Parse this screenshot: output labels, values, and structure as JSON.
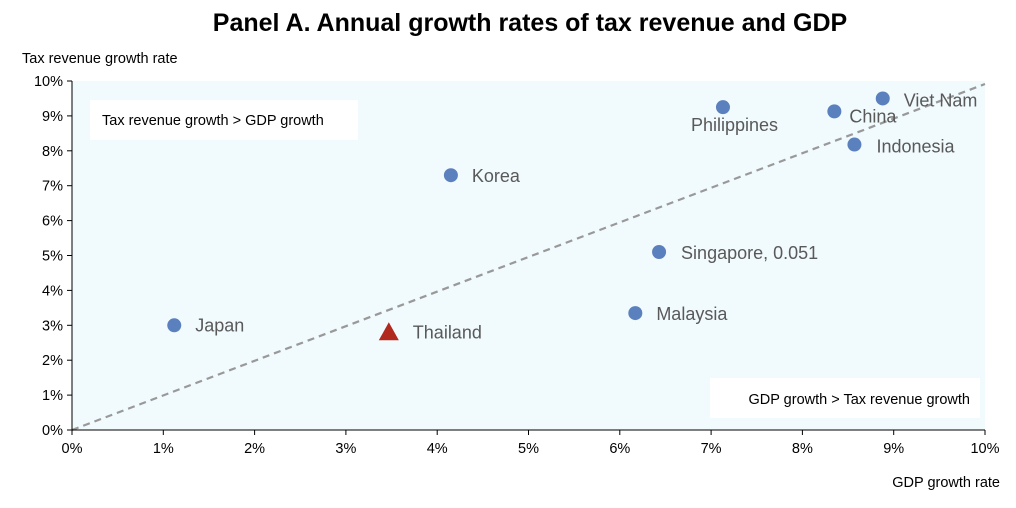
{
  "chart_data": {
    "type": "scatter",
    "title": "Panel A. Annual growth rates of tax revenue and GDP",
    "xlabel": "GDP growth rate",
    "ylabel": "Tax revenue growth rate",
    "xlim": [
      0,
      0.1
    ],
    "ylim": [
      0,
      0.1
    ],
    "x_ticks": [
      "0%",
      "1%",
      "2%",
      "3%",
      "4%",
      "5%",
      "6%",
      "7%",
      "8%",
      "9%",
      "10%"
    ],
    "y_ticks": [
      "0%",
      "1%",
      "2%",
      "3%",
      "4%",
      "5%",
      "6%",
      "7%",
      "8%",
      "9%",
      "10%"
    ],
    "grid": false,
    "reference_line": {
      "type": "diagonal",
      "style": "dashed",
      "color": "#999999",
      "from": [
        0,
        0
      ],
      "to": [
        0.1,
        0.1
      ]
    },
    "annotations": [
      {
        "text": "Tax revenue growth > GDP growth",
        "placement": "top-left"
      },
      {
        "text": "GDP growth > Tax revenue growth",
        "placement": "bottom-right"
      }
    ],
    "points": [
      {
        "label": "Japan",
        "x": 0.0112,
        "y": 0.03,
        "marker": "circle",
        "color": "#5B80BE"
      },
      {
        "label": "Thailand",
        "x": 0.0347,
        "y": 0.028,
        "marker": "triangle",
        "color": "#B0281E"
      },
      {
        "label": "Korea",
        "x": 0.0415,
        "y": 0.073,
        "marker": "circle",
        "color": "#5B80BE"
      },
      {
        "label": "Malaysia",
        "x": 0.0617,
        "y": 0.0335,
        "marker": "circle",
        "color": "#5B80BE"
      },
      {
        "label": "Singapore, 0.051",
        "x": 0.0643,
        "y": 0.051,
        "marker": "circle",
        "color": "#5B80BE"
      },
      {
        "label": "Philippines",
        "x": 0.0713,
        "y": 0.0925,
        "marker": "circle",
        "color": "#5B80BE"
      },
      {
        "label": "China",
        "x": 0.0835,
        "y": 0.0913,
        "marker": "circle",
        "color": "#5B80BE"
      },
      {
        "label": "Indonesia",
        "x": 0.0857,
        "y": 0.0818,
        "marker": "circle",
        "color": "#5B80BE"
      },
      {
        "label": "Viet Nam",
        "x": 0.0888,
        "y": 0.095,
        "marker": "circle",
        "color": "#5B80BE"
      }
    ]
  },
  "colors": {
    "plot_background": "#F1FAFD",
    "axis": "#000000",
    "label_text": "#595959"
  }
}
